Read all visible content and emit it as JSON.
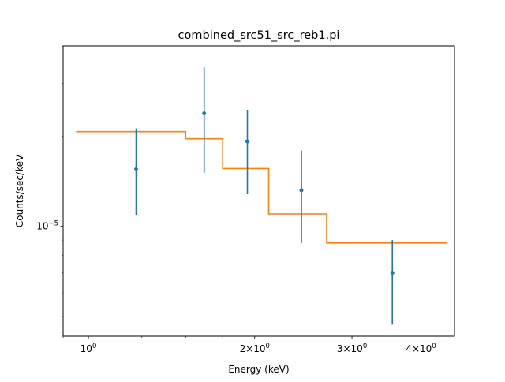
{
  "chart_data": {
    "type": "scatter",
    "title": "combined_src51_src_reb1.pi",
    "xlabel": "Energy (keV)",
    "ylabel": "Counts/sec/keV",
    "x_scale": "log",
    "y_scale": "log",
    "xlim": [
      0.9,
      4.6
    ],
    "ylim": [
      4.3e-06,
      4e-05
    ],
    "x_ticks": [
      {
        "value": 1,
        "base": "10",
        "exp": "0",
        "prefix": ""
      },
      {
        "value": 2,
        "base": "10",
        "exp": "0",
        "prefix": "2×"
      },
      {
        "value": 3,
        "base": "10",
        "exp": "0",
        "prefix": "3×"
      },
      {
        "value": 4,
        "base": "10",
        "exp": "0",
        "prefix": "4×"
      }
    ],
    "x_minor_ticks": [
      0.9,
      1.25,
      1.5,
      1.75
    ],
    "y_ticks": [
      {
        "value": 1e-05,
        "base": "10",
        "exp": "−5"
      }
    ],
    "y_minor_ticks": [
      5e-06,
      6e-06,
      7e-06,
      8e-06,
      9e-06,
      2e-05,
      3e-05,
      4e-05
    ],
    "series": [
      {
        "kind": "data",
        "color": "#1f77b4",
        "points": [
          {
            "x": 1.22,
            "y": 1.55e-05,
            "yerr_low": 1.09e-05,
            "yerr_high": 2.12e-05
          },
          {
            "x": 1.62,
            "y": 2.38e-05,
            "yerr_low": 1.51e-05,
            "yerr_high": 3.39e-05
          },
          {
            "x": 1.94,
            "y": 1.92e-05,
            "yerr_low": 1.28e-05,
            "yerr_high": 2.44e-05
          },
          {
            "x": 2.43,
            "y": 1.32e-05,
            "yerr_low": 8.8e-06,
            "yerr_high": 1.79e-05
          },
          {
            "x": 3.55,
            "y": 7e-06,
            "yerr_low": 4.7e-06,
            "yerr_high": 9e-06
          }
        ]
      },
      {
        "kind": "model",
        "color": "#ff7f0e",
        "steps": [
          {
            "x0": 0.95,
            "x1": 1.5,
            "y": 2.07e-05
          },
          {
            "x0": 1.5,
            "x1": 1.75,
            "y": 1.96e-05
          },
          {
            "x0": 1.75,
            "x1": 2.12,
            "y": 1.56e-05
          },
          {
            "x0": 2.12,
            "x1": 2.7,
            "y": 1.1e-05
          },
          {
            "x0": 2.7,
            "x1": 4.45,
            "y": 8.8e-06
          }
        ]
      }
    ]
  }
}
